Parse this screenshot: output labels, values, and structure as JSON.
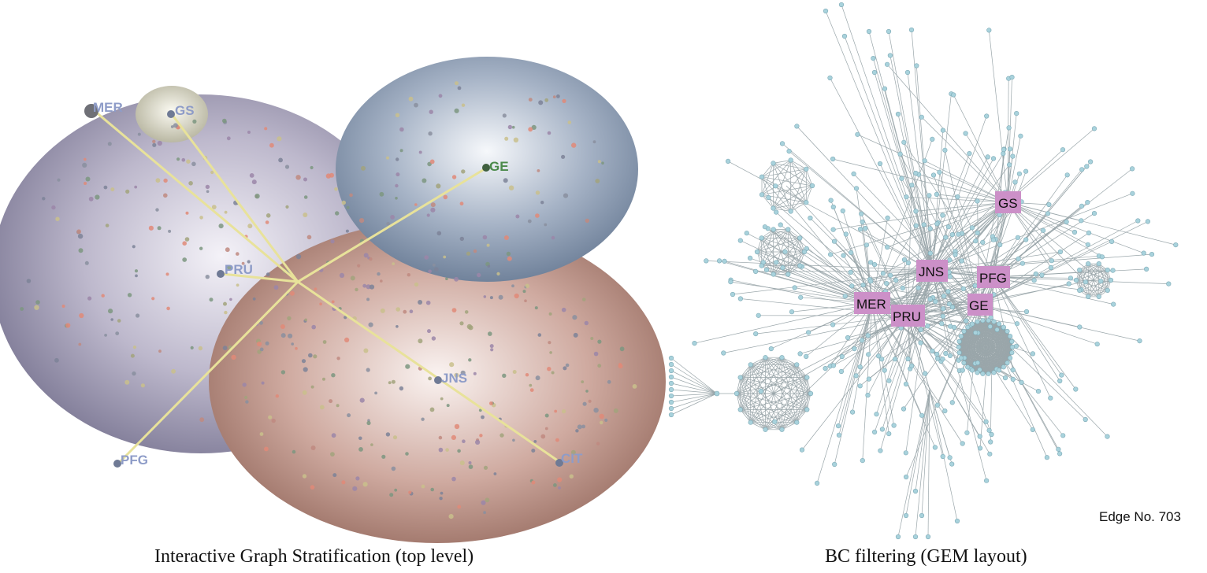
{
  "left_panel": {
    "caption": "Interactive Graph Stratification (top level)",
    "nodes": [
      {
        "id": "MER",
        "label": "MER",
        "color": "#8e9cc8"
      },
      {
        "id": "GS",
        "label": "GS",
        "color": "#8e9cc8"
      },
      {
        "id": "GE",
        "label": "GE",
        "color": "#4b8a4b"
      },
      {
        "id": "PRU",
        "label": "PRU",
        "color": "#8e9cc8"
      },
      {
        "id": "JNS",
        "label": "JNS",
        "color": "#8e9cc8"
      },
      {
        "id": "PFG",
        "label": "PFG",
        "color": "#8e9cc8"
      },
      {
        "id": "CIT",
        "label": "CIT",
        "color": "#8e9cc8"
      }
    ],
    "spheres": [
      {
        "id": "purple-cluster",
        "color": "#9d99b2"
      },
      {
        "id": "gs-cluster",
        "color": "#cfcdb8"
      },
      {
        "id": "blue-cluster",
        "color": "#8b9bb1"
      },
      {
        "id": "brown-cluster",
        "color": "#b99185"
      }
    ],
    "edge_color": "#e8e29a"
  },
  "right_panel": {
    "caption": "BC filtering (GEM layout)",
    "edge_count_label": "Edge No. 703",
    "highlight_color": "#cc90c8",
    "node_color": "#a8d2dc",
    "edge_color": "#9aa6aa",
    "labels": [
      {
        "id": "GS",
        "text": "GS"
      },
      {
        "id": "JNS",
        "text": "JNS"
      },
      {
        "id": "PFG",
        "text": "PFG"
      },
      {
        "id": "MER",
        "text": "MER"
      },
      {
        "id": "GE",
        "text": "GE"
      },
      {
        "id": "PRU",
        "text": "PRU"
      }
    ]
  }
}
